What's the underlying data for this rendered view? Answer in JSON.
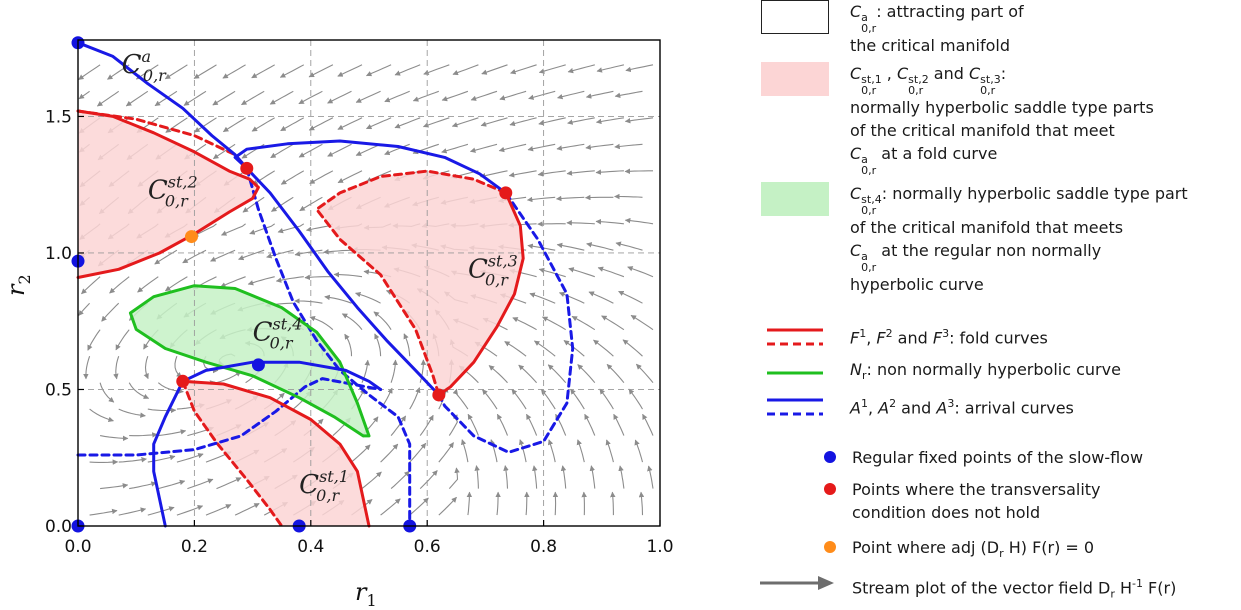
{
  "chart_data": {
    "type": "phase-portrait",
    "xlabel": "r",
    "xlabel_sub": "1",
    "ylabel": "r",
    "ylabel_sub": "2",
    "xlim": [
      0.0,
      1.0
    ],
    "ylim": [
      0.0,
      1.78
    ],
    "xticks": [
      "0.0",
      "0.2",
      "0.4",
      "0.6",
      "0.8",
      "1.0"
    ],
    "xtick_values": [
      0.0,
      0.2,
      0.4,
      0.6,
      0.8,
      1.0
    ],
    "yticks": [
      "0.0",
      "0.5",
      "1.0",
      "1.5"
    ],
    "ytick_values": [
      0.0,
      0.5,
      1.0,
      1.5
    ],
    "grid": true,
    "grid_style": "dashed",
    "colors": {
      "fold": "#e41a1c",
      "nonhyperbolic": "#1fbf1f",
      "arrival": "#1919e6",
      "regular_point": "#1313e0",
      "transversality_point": "#e51a1a",
      "adj_point": "#ff8c1a",
      "saddle_fill": "#fcd5d5",
      "nonhyp_fill": "#c5f1c5",
      "stream": "#808080"
    },
    "region_labels": [
      {
        "base": "C",
        "sub": "0,r",
        "sup": "a",
        "x": 0.075,
        "y": 1.66
      },
      {
        "base": "C",
        "sub": "0,r",
        "sup": "st,2",
        "x": 0.12,
        "y": 1.2
      },
      {
        "base": "C",
        "sub": "0,r",
        "sup": "st,3",
        "x": 0.67,
        "y": 0.91
      },
      {
        "base": "C",
        "sub": "0,r",
        "sup": "st,4",
        "x": 0.3,
        "y": 0.68
      },
      {
        "base": "C",
        "sub": "0,r",
        "sup": "st,1",
        "x": 0.38,
        "y": 0.12
      }
    ],
    "regular_fixed_points": [
      [
        0.0,
        1.77
      ],
      [
        0.0,
        0.97
      ],
      [
        0.31,
        0.59
      ],
      [
        0.38,
        0.0
      ],
      [
        0.57,
        0.0
      ],
      [
        0.0,
        0.0
      ]
    ],
    "transversality_points": [
      [
        0.29,
        1.31
      ],
      [
        0.735,
        1.22
      ],
      [
        0.62,
        0.48
      ],
      [
        0.18,
        0.53
      ]
    ],
    "adj_points": [
      [
        0.195,
        1.06
      ]
    ],
    "curves": {
      "fold_solid": [
        [
          [
            0.0,
            1.52
          ],
          [
            0.06,
            1.5
          ],
          [
            0.13,
            1.44
          ],
          [
            0.2,
            1.37
          ],
          [
            0.26,
            1.3
          ],
          [
            0.295,
            1.27
          ],
          [
            0.31,
            1.24
          ],
          [
            0.3,
            1.2
          ],
          [
            0.26,
            1.15
          ],
          [
            0.2,
            1.07
          ],
          [
            0.14,
            1.0
          ],
          [
            0.07,
            0.94
          ],
          [
            0.0,
            0.91
          ]
        ],
        [
          [
            0.735,
            1.22
          ],
          [
            0.76,
            1.1
          ],
          [
            0.765,
            0.98
          ],
          [
            0.75,
            0.85
          ],
          [
            0.72,
            0.73
          ],
          [
            0.68,
            0.6
          ],
          [
            0.64,
            0.51
          ],
          [
            0.62,
            0.48
          ]
        ],
        [
          [
            0.18,
            0.53
          ],
          [
            0.25,
            0.52
          ],
          [
            0.33,
            0.47
          ],
          [
            0.4,
            0.39
          ],
          [
            0.45,
            0.3
          ],
          [
            0.48,
            0.2
          ],
          [
            0.49,
            0.1
          ],
          [
            0.5,
            0.0
          ]
        ]
      ],
      "fold_dashed": [
        [
          [
            0.0,
            1.52
          ],
          [
            0.1,
            1.49
          ],
          [
            0.2,
            1.43
          ],
          [
            0.27,
            1.36
          ],
          [
            0.29,
            1.31
          ]
        ],
        [
          [
            0.735,
            1.22
          ],
          [
            0.68,
            1.27
          ],
          [
            0.6,
            1.3
          ],
          [
            0.52,
            1.28
          ],
          [
            0.45,
            1.22
          ],
          [
            0.41,
            1.16
          ],
          [
            0.45,
            1.05
          ],
          [
            0.52,
            0.92
          ],
          [
            0.58,
            0.72
          ],
          [
            0.61,
            0.55
          ],
          [
            0.62,
            0.48
          ]
        ],
        [
          [
            0.18,
            0.53
          ],
          [
            0.2,
            0.42
          ],
          [
            0.24,
            0.3
          ],
          [
            0.29,
            0.17
          ],
          [
            0.33,
            0.06
          ],
          [
            0.35,
            0.0
          ]
        ]
      ],
      "nonhyperbolic": [
        [
          [
            0.49,
            0.33
          ],
          [
            0.44,
            0.4
          ],
          [
            0.38,
            0.47
          ],
          [
            0.3,
            0.55
          ],
          [
            0.22,
            0.6
          ],
          [
            0.15,
            0.65
          ],
          [
            0.1,
            0.72
          ],
          [
            0.09,
            0.78
          ],
          [
            0.13,
            0.84
          ],
          [
            0.2,
            0.88
          ],
          [
            0.27,
            0.87
          ],
          [
            0.35,
            0.8
          ],
          [
            0.41,
            0.71
          ],
          [
            0.45,
            0.6
          ],
          [
            0.48,
            0.45
          ],
          [
            0.5,
            0.33
          ],
          [
            0.49,
            0.33
          ]
        ]
      ],
      "arrival_solid": [
        [
          [
            0.0,
            1.77
          ],
          [
            0.06,
            1.72
          ],
          [
            0.12,
            1.62
          ],
          [
            0.18,
            1.53
          ],
          [
            0.23,
            1.43
          ],
          [
            0.27,
            1.36
          ],
          [
            0.29,
            1.31
          ],
          [
            0.33,
            1.22
          ],
          [
            0.38,
            1.08
          ],
          [
            0.43,
            0.93
          ],
          [
            0.48,
            0.8
          ],
          [
            0.53,
            0.68
          ],
          [
            0.58,
            0.57
          ],
          [
            0.62,
            0.48
          ]
        ],
        [
          [
            0.735,
            1.22
          ],
          [
            0.69,
            1.29
          ],
          [
            0.63,
            1.35
          ],
          [
            0.55,
            1.39
          ],
          [
            0.45,
            1.41
          ],
          [
            0.36,
            1.4
          ],
          [
            0.29,
            1.38
          ],
          [
            0.27,
            1.35
          ],
          [
            0.29,
            1.31
          ]
        ],
        [
          [
            0.15,
            0.0
          ],
          [
            0.14,
            0.1
          ],
          [
            0.13,
            0.2
          ],
          [
            0.13,
            0.3
          ],
          [
            0.15,
            0.4
          ],
          [
            0.18,
            0.53
          ],
          [
            0.22,
            0.57
          ],
          [
            0.3,
            0.6
          ],
          [
            0.38,
            0.6
          ],
          [
            0.46,
            0.57
          ],
          [
            0.5,
            0.53
          ],
          [
            0.52,
            0.5
          ]
        ]
      ],
      "arrival_dashed": [
        [
          [
            0.29,
            1.31
          ],
          [
            0.31,
            1.16
          ],
          [
            0.34,
            0.98
          ],
          [
            0.37,
            0.82
          ],
          [
            0.41,
            0.68
          ],
          [
            0.45,
            0.57
          ],
          [
            0.5,
            0.48
          ],
          [
            0.55,
            0.4
          ],
          [
            0.57,
            0.3
          ],
          [
            0.57,
            0.16
          ],
          [
            0.57,
            0.0
          ]
        ],
        [
          [
            0.735,
            1.22
          ],
          [
            0.79,
            1.05
          ],
          [
            0.84,
            0.85
          ],
          [
            0.85,
            0.65
          ],
          [
            0.84,
            0.45
          ],
          [
            0.8,
            0.31
          ],
          [
            0.74,
            0.27
          ],
          [
            0.68,
            0.33
          ],
          [
            0.63,
            0.44
          ],
          [
            0.62,
            0.48
          ]
        ],
        [
          [
            0.0,
            0.26
          ],
          [
            0.1,
            0.26
          ],
          [
            0.2,
            0.28
          ],
          [
            0.28,
            0.33
          ],
          [
            0.34,
            0.42
          ],
          [
            0.39,
            0.51
          ],
          [
            0.42,
            0.54
          ],
          [
            0.52,
            0.5
          ]
        ]
      ]
    }
  },
  "legend": {
    "items": [
      {
        "kind": "box-white",
        "text": "C^a_{0,r}: attracting part of\nthe critical manifold"
      },
      {
        "kind": "box-pink",
        "text": "C^{st,1}_{0,r} , C^{st,2}_{0,r} and C^{st,3}_{0,r}:\nnormally hyperbolic saddle type parts\nof the critical manifold that meet\nC^a_{0,r} at a fold curve"
      },
      {
        "kind": "box-green",
        "text": "C^{st,4}_{0,r}: normally hyperbolic saddle type part\nof the critical manifold that meets\nC^a_{0,r} at the regular non normally\nhyperbolic curve"
      },
      {
        "kind": "line-red",
        "text": "F^1, F^2 and F^3: fold curves"
      },
      {
        "kind": "line-green",
        "text": "N_r: non normally hyperbolic curve"
      },
      {
        "kind": "line-blue",
        "text": "A^1, A^2 and A^3: arrival curves"
      },
      {
        "kind": "dot-blue",
        "text": "Regular fixed points of the slow-flow"
      },
      {
        "kind": "dot-red",
        "text": "Points where the transversality\ncondition does not hold"
      },
      {
        "kind": "dot-orange",
        "text": "Point where adj (D_r H) F(r) = 0"
      },
      {
        "kind": "arrow-gray",
        "text": "Stream plot of the vector field D_r H^{-1} F(r)"
      }
    ]
  }
}
